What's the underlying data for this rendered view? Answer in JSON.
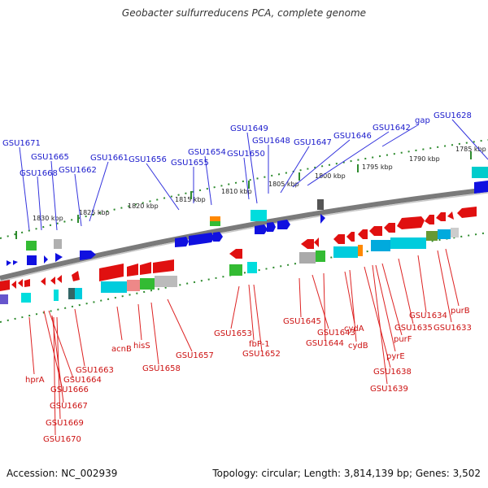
{
  "title": "Geobacter sulfurreducens PCA, complete genome",
  "footer": {
    "accession": "Accession: NC_002939",
    "summary": "Topology: circular; Length: 3,814,139 bp; Genes: 3,502"
  },
  "colors": {
    "forward_label": "#0000cc",
    "reverse_label": "#cc0000",
    "forward_gene": "#1010e0",
    "reverse_gene": "#e01010",
    "backbone": "#808080",
    "ticks": "#228822"
  },
  "kbp_labels": [
    "1830 kbp",
    "1825 kbp",
    "1820 kbp",
    "1815 kbp",
    "1810 kbp",
    "1805 kbp",
    "1800 kbp",
    "1795 kbp",
    "1790 kbp",
    "1785 kbp"
  ],
  "forward_labels": [
    "GSU1671",
    "GSU1665",
    "GSU1668",
    "GSU1662",
    "GSU1661",
    "GSU1656",
    "GSU1654",
    "GSU1655",
    "GSU1650",
    "GSU1649",
    "GSU1648",
    "GSU1647",
    "GSU1646",
    "GSU1642",
    "gap",
    "GSU1628"
  ],
  "reverse_labels": [
    "hprA",
    "GSU1666",
    "GSU1664",
    "GSU1663",
    "GSU1667",
    "GSU1669",
    "GSU1670",
    "acnB",
    "hisS",
    "GSU1658",
    "GSU1657",
    "GSU1653",
    "fbP-1",
    "GSU1652",
    "GSU1645",
    "GSU1643",
    "GSU1644",
    "cydA",
    "cydB",
    "GSU1638",
    "GSU1639",
    "pyrE",
    "purF",
    "GSU1635",
    "GSU1634",
    "GSU1633",
    "purB"
  ]
}
